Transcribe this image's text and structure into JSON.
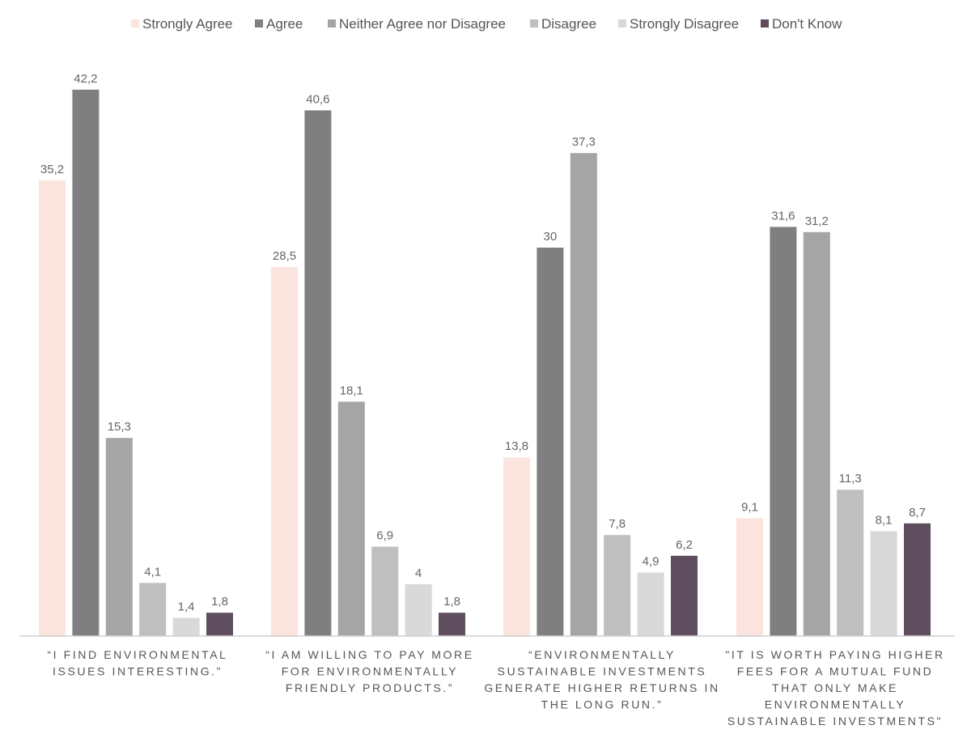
{
  "chart_data": {
    "type": "bar",
    "title": "",
    "xlabel": "",
    "ylabel": "",
    "ylim": [
      0,
      45
    ],
    "grid": false,
    "legend_position": "top",
    "categories": [
      [
        "“I FIND ENVIRONMENTAL",
        "ISSUES INTERESTING.”"
      ],
      [
        "“I AM WILLING TO PAY MORE",
        "FOR ENVIRONMENTALLY",
        "FRIENDLY PRODUCTS.”"
      ],
      [
        "“ENVIRONMENTALLY",
        "SUSTAINABLE INVESTMENTS",
        "GENERATE HIGHER RETURNS IN",
        "THE LONG RUN.”"
      ],
      [
        "\"IT IS WORTH PAYING HIGHER",
        "FEES FOR A MUTUAL FUND",
        "THAT ONLY MAKE",
        "ENVIRONMENTALLY",
        "SUSTAINABLE INVESTMENTS\""
      ]
    ],
    "series": [
      {
        "name": "Strongly Agree",
        "color": "#fbe4dd",
        "values": [
          35.2,
          28.5,
          13.8,
          9.1
        ],
        "labels": [
          "35,2",
          "28,5",
          "13,8",
          "9,1"
        ]
      },
      {
        "name": "Agree",
        "color": "#7f7f7f",
        "values": [
          42.2,
          40.6,
          30,
          31.6
        ],
        "labels": [
          "42,2",
          "40,6",
          "30",
          "31,6"
        ]
      },
      {
        "name": "Neither Agree nor Disagree",
        "color": "#a5a5a5",
        "values": [
          15.3,
          18.1,
          37.3,
          31.2
        ],
        "labels": [
          "15,3",
          "18,1",
          "37,3",
          "31,2"
        ]
      },
      {
        "name": "Disagree",
        "color": "#bfbfbf",
        "values": [
          4.1,
          6.9,
          7.8,
          11.3
        ],
        "labels": [
          "4,1",
          "6,9",
          "7,8",
          "11,3"
        ]
      },
      {
        "name": "Strongly Disagree",
        "color": "#d9d9d9",
        "values": [
          1.4,
          4,
          4.9,
          8.1
        ],
        "labels": [
          "1,4",
          "4",
          "4,9",
          "8,1"
        ]
      },
      {
        "name": "Don't Know",
        "color": "#5e4e5e",
        "values": [
          1.8,
          1.8,
          6.2,
          8.7
        ],
        "labels": [
          "1,8",
          "1,8",
          "6,2",
          "8,7"
        ]
      }
    ]
  }
}
